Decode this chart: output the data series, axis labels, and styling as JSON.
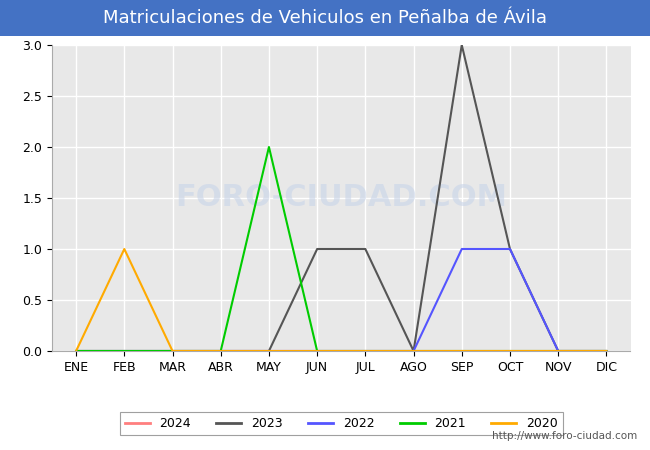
{
  "title": "Matriculaciones de Vehiculos en Peñalba de Ávila",
  "months": [
    "ENE",
    "FEB",
    "MAR",
    "ABR",
    "MAY",
    "JUN",
    "JUL",
    "AGO",
    "SEP",
    "OCT",
    "NOV",
    "DIC"
  ],
  "series": {
    "2024": {
      "values": [
        0,
        0,
        0,
        0,
        0,
        0,
        0,
        0,
        0,
        0,
        0,
        0
      ],
      "color": "#ff7f7f",
      "linewidth": 1.5
    },
    "2023": {
      "values": [
        0,
        0,
        0,
        0,
        0,
        1,
        1,
        0,
        3,
        1,
        0,
        0
      ],
      "color": "#555555",
      "linewidth": 1.5
    },
    "2022": {
      "values": [
        0,
        0,
        0,
        0,
        0,
        0,
        0,
        0,
        1,
        1,
        0,
        0
      ],
      "color": "#5555ff",
      "linewidth": 1.5
    },
    "2021": {
      "values": [
        0,
        0,
        0,
        0,
        2,
        0,
        0,
        0,
        0,
        0,
        0,
        0
      ],
      "color": "#00cc00",
      "linewidth": 1.5
    },
    "2020": {
      "values": [
        0,
        1,
        0,
        0,
        0,
        0,
        0,
        0,
        0,
        0,
        0,
        0
      ],
      "color": "#ffaa00",
      "linewidth": 1.5
    }
  },
  "ylim": [
    0,
    3.0
  ],
  "yticks": [
    0.0,
    0.5,
    1.0,
    1.5,
    2.0,
    2.5,
    3.0
  ],
  "legend_order": [
    "2024",
    "2023",
    "2022",
    "2021",
    "2020"
  ],
  "title_fontsize": 13,
  "tick_fontsize": 9,
  "legend_fontsize": 9,
  "url_text": "http://www.foro-ciudad.com",
  "title_bg_color": "#4472c4",
  "title_text_color": "#ffffff",
  "plot_bg_color": "#e8e8e8",
  "grid_color": "#ffffff",
  "watermark_text": "FORO-CIUDAD.COM",
  "watermark_color": "#c8d4e8",
  "watermark_alpha": 0.6
}
